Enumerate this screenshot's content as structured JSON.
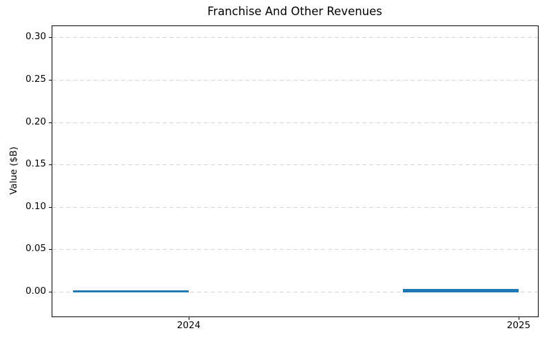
{
  "chart_data": {
    "type": "bar",
    "title": "Franchise And Other Revenues",
    "xlabel": "",
    "ylabel": "Value ($B)",
    "categories": [
      "2024",
      "2025"
    ],
    "values": [
      0.002,
      0.003
    ],
    "yticks": [
      0.0,
      0.05,
      0.1,
      0.15,
      0.2,
      0.25,
      0.3
    ],
    "ytick_labels": [
      "0.00",
      "0.05",
      "0.10",
      "0.15",
      "0.20",
      "0.25",
      "0.30"
    ],
    "ylim": [
      -0.03,
      0.314
    ],
    "grid": true,
    "grid_style": "dashed",
    "legend": "none",
    "colors": {
      "bar": "#1f77b4",
      "grid": "#d4d4d4",
      "spine": "#000000",
      "text": "#000000",
      "background": "#ffffff"
    }
  }
}
